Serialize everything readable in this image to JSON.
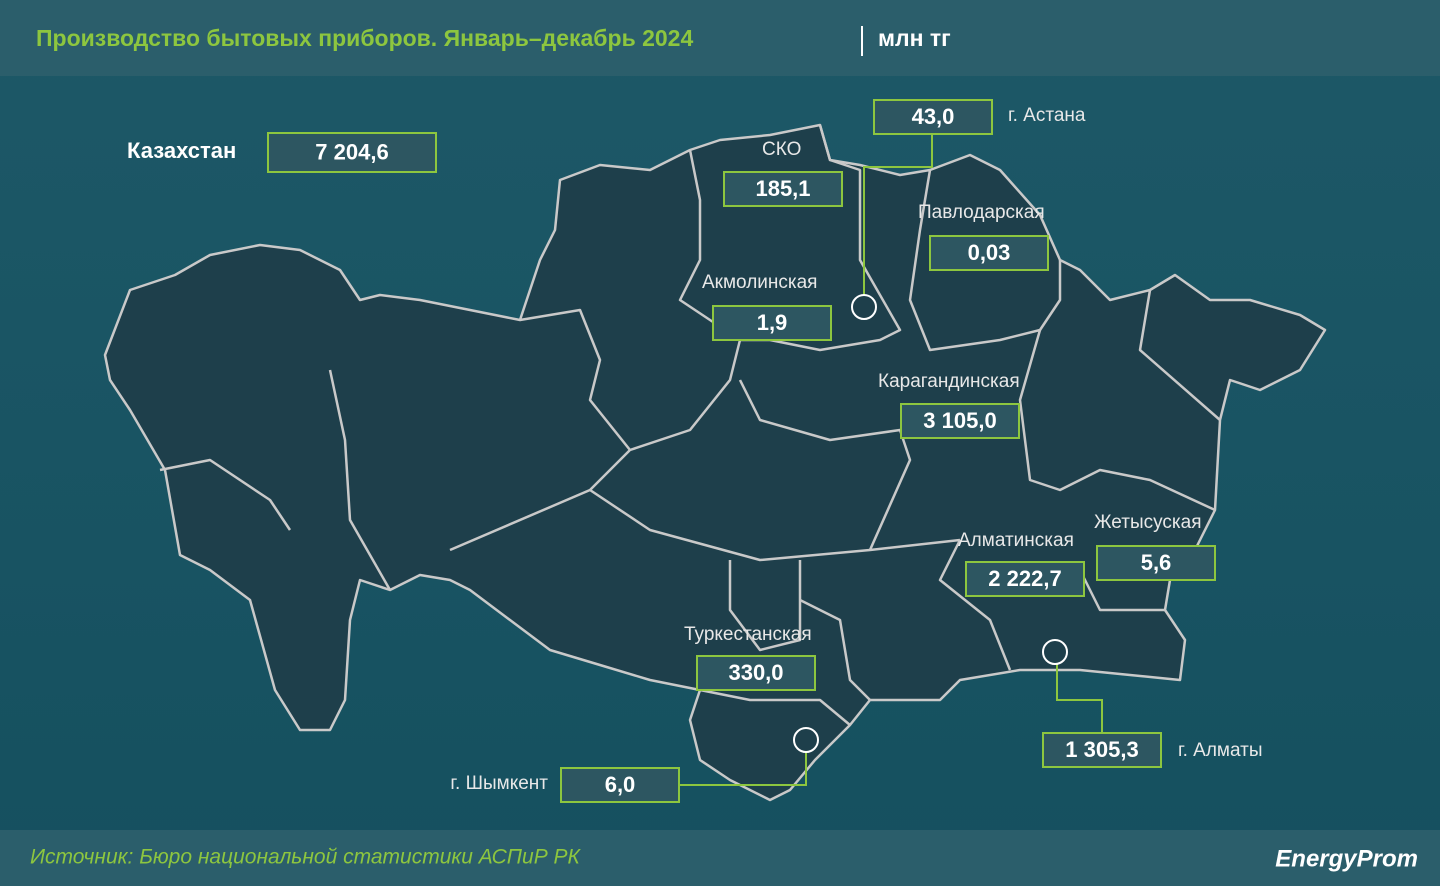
{
  "header": {
    "title": "Производство бытовых приборов. Январь–декабрь 2024",
    "unit": "млн тг"
  },
  "total": {
    "label": "Казахстан",
    "value": "7 204,6"
  },
  "regions": [
    {
      "name": "г. Астана",
      "value": "43,0"
    },
    {
      "name": "СКО",
      "value": "185,1"
    },
    {
      "name": "Павлодарская",
      "value": "0,03"
    },
    {
      "name": "Акмолинская",
      "value": "1,9"
    },
    {
      "name": "Карагандинская",
      "value": "3 105,0"
    },
    {
      "name": "Жетысуская",
      "value": "5,6"
    },
    {
      "name": "Алматинская",
      "value": "2 222,7"
    },
    {
      "name": "Туркестанская",
      "value": "330,0"
    },
    {
      "name": "г. Шымкент",
      "value": "6,0"
    },
    {
      "name": "г. Алматы",
      "value": "1 305,3"
    }
  ],
  "footer": {
    "source": "Источник: Бюро национальной статистики АСПиР РК",
    "logo": "EnergyProm"
  }
}
